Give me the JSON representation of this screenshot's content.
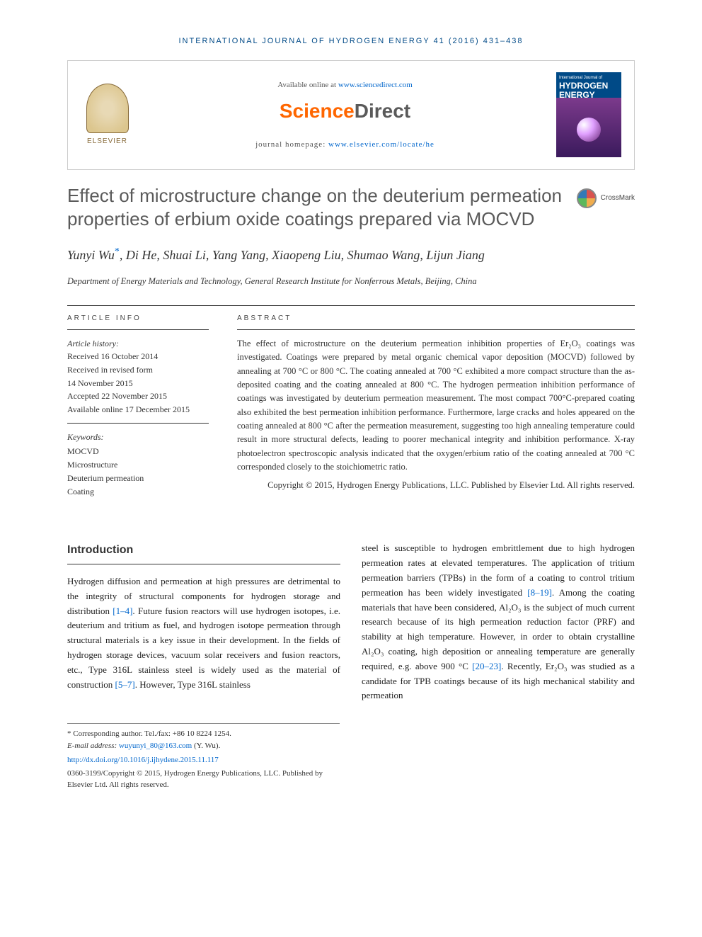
{
  "journal_header": "INTERNATIONAL JOURNAL OF HYDROGEN ENERGY 41 (2016) 431–438",
  "top": {
    "available_prefix": "Available online at ",
    "available_link": "www.sciencedirect.com",
    "sd_logo_a": "Science",
    "sd_logo_b": "Direct",
    "homepage_prefix": "journal homepage: ",
    "homepage_link": "www.elsevier.com/locate/he",
    "elsevier_text": "ELSEVIER",
    "cover_small": "International Journal of",
    "cover_big1": "HYDROGEN",
    "cover_big2": "ENERGY"
  },
  "crossmark": "CrossMark",
  "title": "Effect of microstructure change on the deuterium permeation properties of erbium oxide coatings prepared via MOCVD",
  "authors_line1": "Yunyi Wu",
  "authors_star": "*",
  "authors_rest": ", Di He, Shuai Li, Yang Yang, Xiaopeng Liu, Shumao Wang, Lijun Jiang",
  "affiliation": "Department of Energy Materials and Technology, General Research Institute for Nonferrous Metals, Beijing, China",
  "labels": {
    "article_info": "ARTICLE INFO",
    "abstract": "ABSTRACT"
  },
  "history": {
    "head": "Article history:",
    "received": "Received 16 October 2014",
    "revised1": "Received in revised form",
    "revised2": "14 November 2015",
    "accepted": "Accepted 22 November 2015",
    "online": "Available online 17 December 2015"
  },
  "keywords": {
    "head": "Keywords:",
    "items": [
      "MOCVD",
      "Microstructure",
      "Deuterium permeation",
      "Coating"
    ]
  },
  "abstract": "The effect of microstructure on the deuterium permeation inhibition properties of Er₂O₃ coatings was investigated. Coatings were prepared by metal organic chemical vapor deposition (MOCVD) followed by annealing at 700 °C or 800 °C. The coating annealed at 700 °C exhibited a more compact structure than the as-deposited coating and the coating annealed at 800 °C. The hydrogen permeation inhibition performance of coatings was investigated by deuterium permeation measurement. The most compact 700°C-prepared coating also exhibited the best permeation inhibition performance. Furthermore, large cracks and holes appeared on the coating annealed at 800 °C after the permeation measurement, suggesting too high annealing temperature could result in more structural defects, leading to poorer mechanical integrity and inhibition performance. X-ray photoelectron spectroscopic analysis indicated that the oxygen/erbium ratio of the coating annealed at 700 °C corresponded closely to the stoichiometric ratio.",
  "copyright_abstract": "Copyright © 2015, Hydrogen Energy Publications, LLC. Published by Elsevier Ltd. All rights reserved.",
  "intro_heading": "Introduction",
  "body": {
    "col1_p1_a": "Hydrogen diffusion and permeation at high pressures are detrimental to the integrity of structural components for hydrogen storage and distribution ",
    "col1_ref1": "[1–4]",
    "col1_p1_b": ". Future fusion reactors will use hydrogen isotopes, i.e. deuterium and tritium as fuel, and hydrogen isotope permeation through structural materials is a key issue in their development. In the fields of hydrogen storage devices, vacuum solar receivers and fusion reactors, etc., Type 316L stainless steel is widely used as the material of construction ",
    "col1_ref2": "[5–7]",
    "col1_p1_c": ". However, Type 316L stainless",
    "col2_a": "steel is susceptible to hydrogen embrittlement due to high hydrogen permeation rates at elevated temperatures. The application of tritium permeation barriers (TPBs) in the form of a coating to control tritium permeation has been widely investigated ",
    "col2_ref1": "[8–19]",
    "col2_b": ". Among the coating materials that have been considered, Al₂O₃ is the subject of much current research because of its high permeation reduction factor (PRF) and stability at high temperature. However, in order to obtain crystalline Al₂O₃ coating, high deposition or annealing temperature are generally required, e.g. above 900 °C ",
    "col2_ref2": "[20–23]",
    "col2_c": ". Recently, Er₂O₃ was studied as a candidate for TPB coatings because of its high mechanical stability and permeation"
  },
  "footnotes": {
    "corresponding": "* Corresponding author. Tel./fax: +86 10 8224 1254.",
    "email_label": "E-mail address: ",
    "email": "wuyunyi_80@163.com",
    "email_suffix": " (Y. Wu).",
    "doi": "http://dx.doi.org/10.1016/j.ijhydene.2015.11.117",
    "bottom": "0360-3199/Copyright © 2015, Hydrogen Energy Publications, LLC. Published by Elsevier Ltd. All rights reserved."
  }
}
